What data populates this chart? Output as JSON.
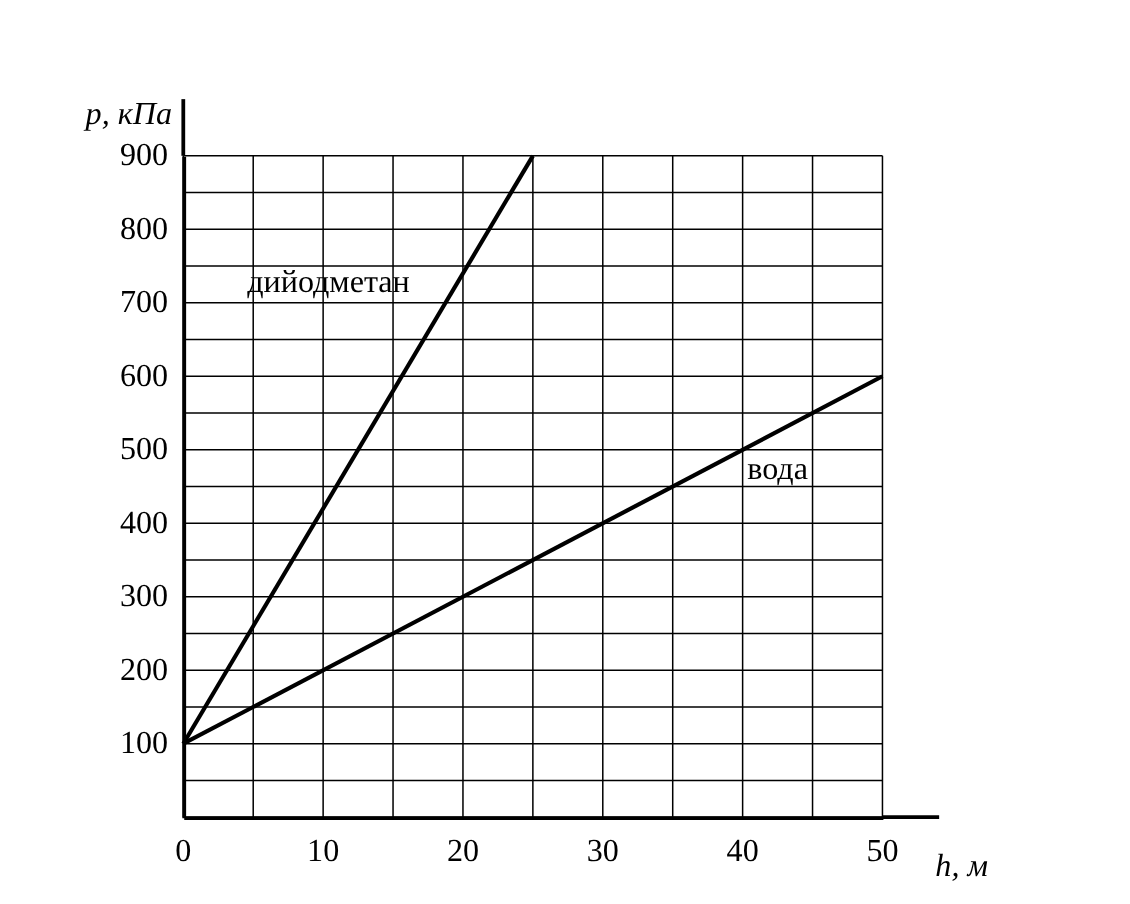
{
  "chart_data": {
    "type": "line",
    "xlabel": "h, м",
    "ylabel": "p, кПа",
    "series": [
      {
        "name": "дийодметан",
        "color": "#000000",
        "x": [
          0,
          25
        ],
        "values": [
          100,
          900
        ]
      },
      {
        "name": "вода",
        "color": "#000000",
        "x": [
          0,
          50
        ],
        "values": [
          100,
          600
        ]
      }
    ],
    "xlim": [
      0,
      50
    ],
    "xticks": [
      0,
      {
        "value": 5,
        "label": null
      },
      10,
      {
        "value": 15,
        "label": null
      },
      20,
      {
        "value": 25,
        "label": null
      },
      30,
      {
        "value": 35,
        "label": null
      },
      40,
      {
        "value": 45,
        "label": null
      },
      50
    ],
    "ylim": [
      0,
      900
    ],
    "yticks": [
      {
        "value": 0,
        "label": null
      },
      {
        "value": 50,
        "label": null
      },
      100,
      {
        "value": 150,
        "label": null
      },
      200,
      {
        "value": 250,
        "label": null
      },
      300,
      {
        "value": 350,
        "label": null
      },
      400,
      {
        "value": 450,
        "label": null
      },
      500,
      {
        "value": 550,
        "label": null
      },
      600,
      {
        "value": 650,
        "label": null
      },
      700,
      {
        "value": 750,
        "label": null
      },
      800,
      {
        "value": 850,
        "label": null
      },
      900
    ],
    "grid": true,
    "legend": false,
    "marker": "none",
    "line_style": "solid"
  }
}
